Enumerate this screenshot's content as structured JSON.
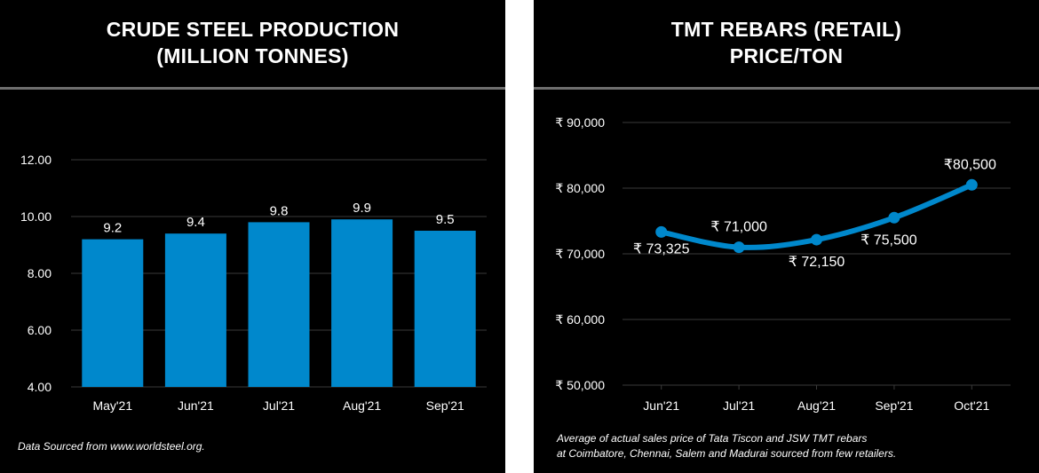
{
  "colors": {
    "background": "#000000",
    "bar": "#0088cc",
    "line": "#0088cc",
    "text": "#ffffff",
    "grid": "#3a3a3a",
    "divider": "#ffffff"
  },
  "left": {
    "title_line1": "CRUDE STEEL PRODUCTION",
    "title_line2": "(MILLION TONNES)",
    "footnote": "Data Sourced from www.worldsteel.org."
  },
  "right": {
    "title_line1": "TMT REBARS (RETAIL)",
    "title_line2": "PRICE/TON",
    "footnote_line1": "Average of actual sales price of Tata Tiscon and JSW TMT rebars",
    "footnote_line2": "at Coimbatore, Chennai, Salem and Madurai sourced from few retailers."
  },
  "chart_data": [
    {
      "type": "bar",
      "title": "CRUDE STEEL PRODUCTION (MILLION TONNES)",
      "categories": [
        "May'21",
        "Jun'21",
        "Jul'21",
        "Aug'21",
        "Sep'21"
      ],
      "values": [
        9.2,
        9.4,
        9.8,
        9.9,
        9.5
      ],
      "data_labels": [
        "9.2",
        "9.4",
        "9.8",
        "9.9",
        "9.5"
      ],
      "ylim": [
        4,
        12
      ],
      "yticks": [
        4,
        6,
        8,
        10,
        12
      ],
      "ytick_labels": [
        "4.00",
        "6.00",
        "8.00",
        "10.00",
        "12.00"
      ],
      "grid": true,
      "legend": "none"
    },
    {
      "type": "line",
      "title": "TMT REBARS (RETAIL) PRICE/TON",
      "categories": [
        "Jun'21",
        "Jul'21",
        "Aug'21",
        "Sep'21",
        "Oct'21"
      ],
      "values": [
        73325,
        71000,
        72150,
        75500,
        80500
      ],
      "data_labels": [
        "₹ 73,325",
        "₹ 71,000",
        "₹ 72,150",
        "₹ 75,500",
        "₹80,500"
      ],
      "ylim": [
        50000,
        90000
      ],
      "yticks": [
        50000,
        60000,
        70000,
        80000,
        90000
      ],
      "ytick_labels": [
        "₹ 50,000",
        "₹ 60,000",
        "₹ 70,000",
        "₹ 80,000",
        "₹ 90,000"
      ],
      "grid": true,
      "legend": "none",
      "smooth": true
    }
  ]
}
